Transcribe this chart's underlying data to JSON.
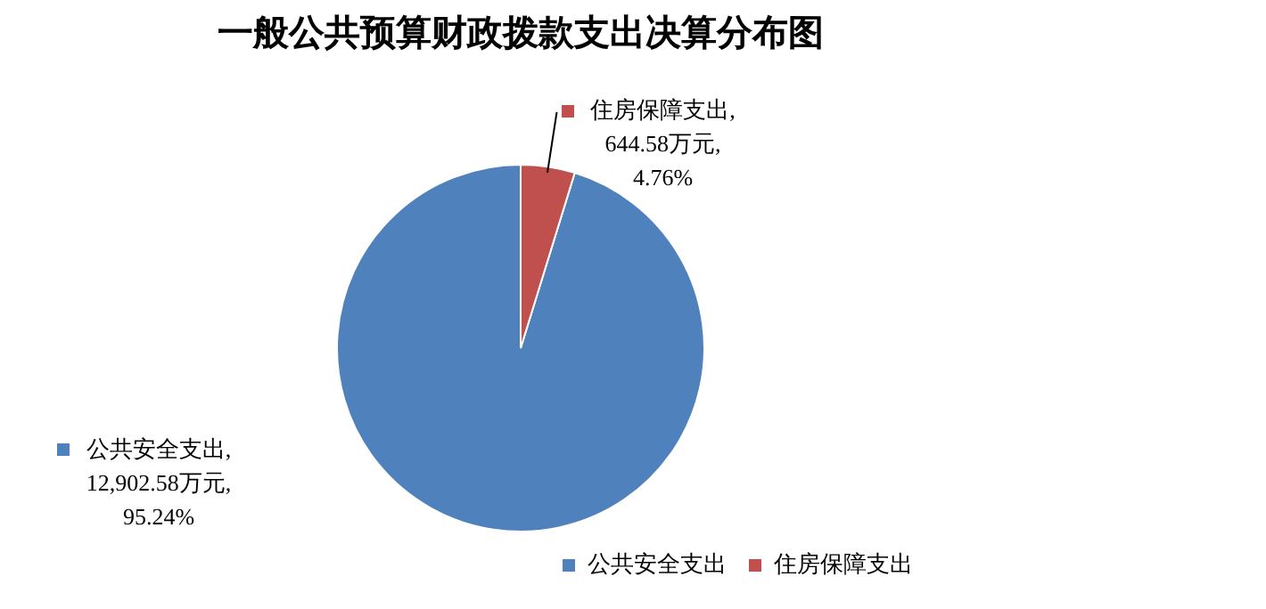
{
  "chart_data": {
    "type": "pie",
    "title": "一般公共预算财政拨款支出决算分布图",
    "categories": [
      "公共安全支出",
      "住房保障支出"
    ],
    "values": [
      12902.58,
      644.58
    ],
    "colors": [
      "#4f81bd",
      "#c0504d"
    ],
    "value_labels": [
      "公共安全支出,\n12,902.58万元,\n95.24%",
      "住房保障支出,\n644.58万元,\n4.76%"
    ],
    "legend": "bottom right"
  }
}
